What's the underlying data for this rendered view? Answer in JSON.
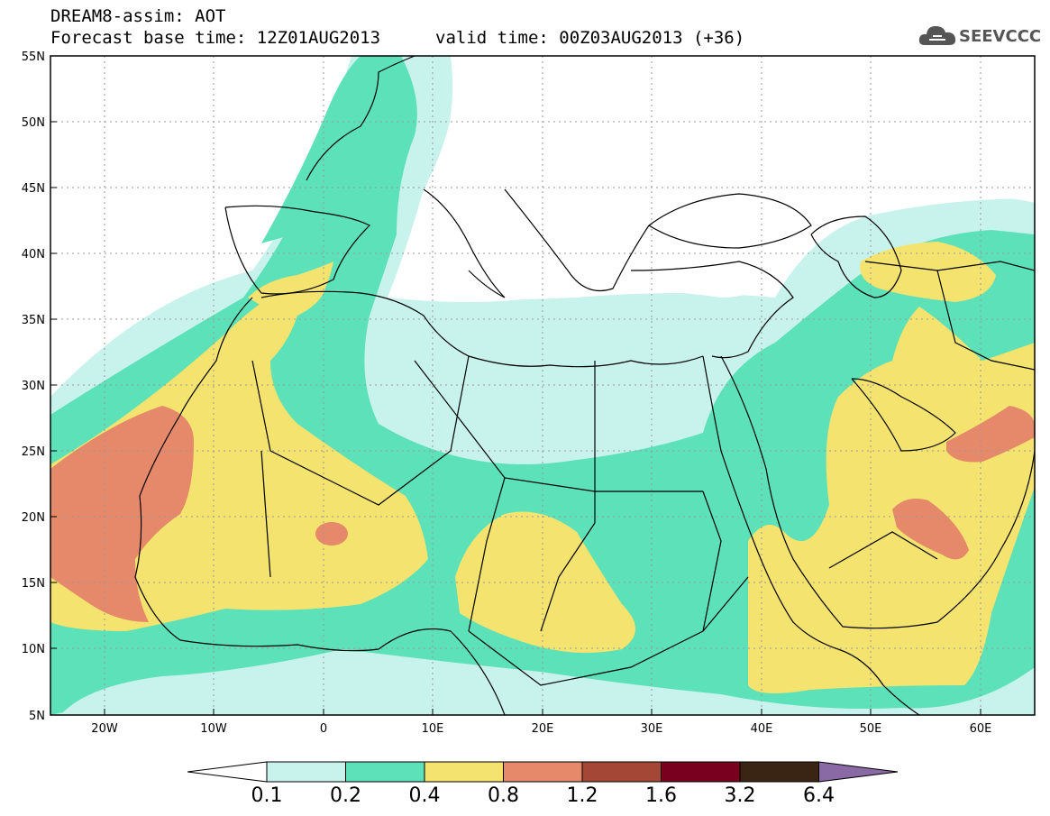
{
  "title": {
    "line1": "DREAM8-assim: AOT",
    "line2_left": "Forecast base time: 12Z01AUG2013",
    "line2_right": "valid time: 00Z03AUG2013 (+36)"
  },
  "logo": {
    "text": "SEEVCCC",
    "icon": "cloud-logo-icon"
  },
  "map": {
    "lon_range": [
      -25,
      65
    ],
    "lat_range": [
      5,
      55
    ],
    "lat_ticks": [
      "5N",
      "10N",
      "15N",
      "20N",
      "25N",
      "30N",
      "35N",
      "40N",
      "45N",
      "50N",
      "55N"
    ],
    "lon_ticks": [
      "20W",
      "10W",
      "0",
      "10E",
      "20E",
      "30E",
      "40E",
      "50E",
      "60E"
    ],
    "grid": "dotted"
  },
  "colorbar": {
    "levels": [
      "0.1",
      "0.2",
      "0.4",
      "0.8",
      "1.2",
      "1.6",
      "3.2",
      "6.4"
    ],
    "colors": [
      "#ffffff",
      "#c8f2ec",
      "#5ce1b9",
      "#f4e36e",
      "#e5896a",
      "#a54737",
      "#7a0020",
      "#3a2515",
      "#8a6aa5"
    ]
  },
  "colors": {
    "c01": "#c8f2ec",
    "c02": "#5ce1b9",
    "c04": "#f4e36e",
    "c08": "#e5896a"
  }
}
